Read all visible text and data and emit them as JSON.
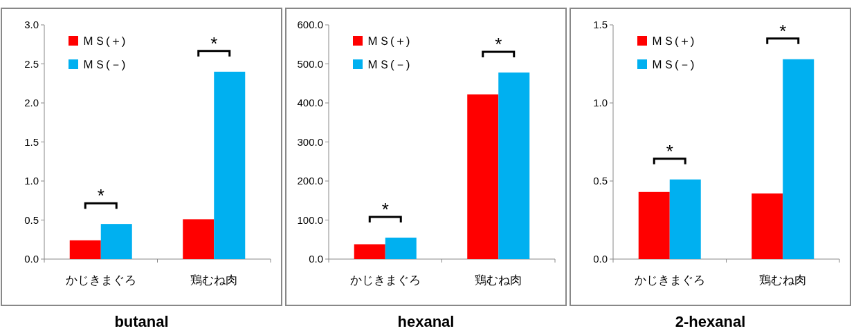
{
  "chart_data": [
    {
      "type": "bar",
      "title": "butanal",
      "categories": [
        "かじきまぐろ",
        "鶏むね肉"
      ],
      "series": [
        {
          "name": "ＭＳ(＋)",
          "color": "#ff0000",
          "values": [
            0.24,
            0.51
          ]
        },
        {
          "name": "ＭＳ(－)",
          "color": "#00b0f0",
          "values": [
            0.45,
            2.4
          ]
        }
      ],
      "ylim": [
        0,
        3
      ],
      "yticks": [
        {
          "value": 0,
          "label": "0.0"
        },
        {
          "value": 0.5,
          "label": "0.5"
        },
        {
          "value": 1,
          "label": "1.0"
        },
        {
          "value": 1.5,
          "label": "1.5"
        },
        {
          "value": 2,
          "label": "2.0"
        },
        {
          "value": 2.5,
          "label": "2.5"
        },
        {
          "value": 3,
          "label": "3.0"
        }
      ],
      "legend": "top left",
      "annotations": [
        "*",
        "*"
      ]
    },
    {
      "type": "bar",
      "title": "hexanal",
      "categories": [
        "かじきまぐろ",
        "鶏むね肉"
      ],
      "series": [
        {
          "name": "ＭＳ(＋)",
          "color": "#ff0000",
          "values": [
            38,
            422
          ]
        },
        {
          "name": "ＭＳ(－)",
          "color": "#00b0f0",
          "values": [
            55,
            478
          ]
        }
      ],
      "ylim": [
        0,
        600
      ],
      "yticks": [
        {
          "value": 0,
          "label": "0.0"
        },
        {
          "value": 100,
          "label": "100.0"
        },
        {
          "value": 200,
          "label": "200.0"
        },
        {
          "value": 300,
          "label": "300.0"
        },
        {
          "value": 400,
          "label": "400.0"
        },
        {
          "value": 500,
          "label": "500.0"
        },
        {
          "value": 600,
          "label": "600.0"
        }
      ],
      "legend": "top left",
      "annotations": [
        "*",
        "*"
      ]
    },
    {
      "type": "bar",
      "title": "2-hexanal",
      "categories": [
        "かじきまぐろ",
        "鶏むね肉"
      ],
      "series": [
        {
          "name": "ＭＳ(＋)",
          "color": "#ff0000",
          "values": [
            0.43,
            0.42
          ]
        },
        {
          "name": "ＭＳ(－)",
          "color": "#00b0f0",
          "values": [
            0.51,
            1.28
          ]
        }
      ],
      "ylim": [
        0,
        1.5
      ],
      "yticks": [
        {
          "value": 0,
          "label": "0.0"
        },
        {
          "value": 0.5,
          "label": "0.5"
        },
        {
          "value": 1,
          "label": "1.0"
        },
        {
          "value": 1.5,
          "label": "1.5"
        }
      ],
      "legend": "top left",
      "annotations": [
        "*",
        "*"
      ]
    }
  ]
}
